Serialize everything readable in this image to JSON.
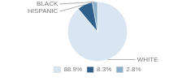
{
  "chart_data": {
    "type": "pie",
    "categories": [
      "WHITE",
      "HISPANIC",
      "BLACK"
    ],
    "values": [
      88.9,
      8.3,
      2.8
    ],
    "colors": [
      "#d9e5f0",
      "#2e5f8a",
      "#8aafc8"
    ],
    "value_labels": [
      "88.9%",
      "8.3%",
      "2.8%"
    ],
    "legend": "bottom"
  }
}
